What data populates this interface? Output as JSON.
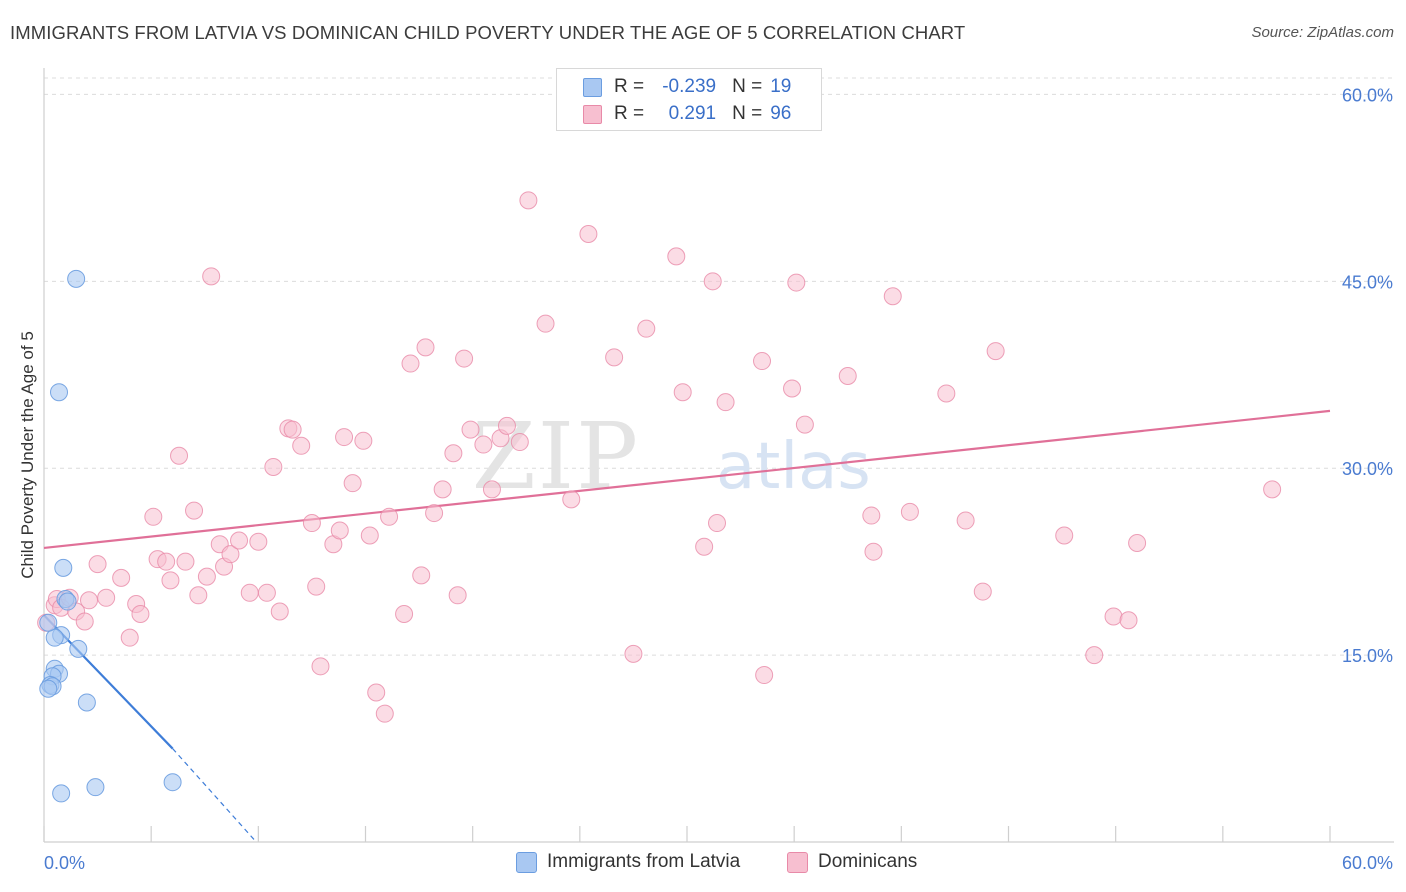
{
  "title": "IMMIGRANTS FROM LATVIA VS DOMINICAN CHILD POVERTY UNDER THE AGE OF 5 CORRELATION CHART",
  "source": "Source: ZipAtlas.com",
  "watermark": {
    "zip": "ZIP",
    "atlas": "atlas"
  },
  "legend": {
    "rows": [
      {
        "r_label": "R = ",
        "r_value": "-0.239",
        "n_label": "N = ",
        "n_value": "19"
      },
      {
        "r_label": "R = ",
        "r_value": "0.291",
        "n_label": "N = ",
        "n_value": "96"
      }
    ]
  },
  "bottom_legend": {
    "latvia": "Immigrants from Latvia",
    "dominicans": "Dominicans"
  },
  "colors": {
    "latvia_fill": "#a9c8f2",
    "latvia_stroke": "#6b9de0",
    "latvia_line": "#3e7dd8",
    "dominican_fill": "#f7bfd0",
    "dominican_stroke": "#e88aa8",
    "dominican_line": "#e07098",
    "tick_blue": "#4a7bd0"
  },
  "chart_data": {
    "type": "scatter",
    "title": "IMMIGRANTS FROM LATVIA VS DOMINICAN CHILD POVERTY UNDER THE AGE OF 5 CORRELATION CHART",
    "xlabel": "",
    "ylabel": "Child Poverty Under the Age of 5",
    "xlim": [
      0,
      60
    ],
    "ylim": [
      0,
      61.8
    ],
    "x_tick_labels": [
      "0.0%",
      "60.0%"
    ],
    "y_ticks": [
      15,
      30,
      45,
      60
    ],
    "y_tick_labels": [
      "15.0%",
      "30.0%",
      "45.0%",
      "60.0%"
    ],
    "grid": true,
    "legend_position": "top-center",
    "series": [
      {
        "name": "Immigrants from Latvia",
        "R": -0.239,
        "N": 19,
        "points": [
          [
            1.5,
            45.2
          ],
          [
            0.7,
            36.1
          ],
          [
            0.9,
            22.0
          ],
          [
            1.0,
            19.5
          ],
          [
            1.1,
            19.3
          ],
          [
            0.8,
            16.6
          ],
          [
            0.5,
            16.4
          ],
          [
            1.6,
            15.5
          ],
          [
            0.5,
            13.9
          ],
          [
            0.7,
            13.5
          ],
          [
            0.4,
            13.3
          ],
          [
            0.3,
            12.6
          ],
          [
            0.4,
            12.5
          ],
          [
            0.2,
            12.3
          ],
          [
            2.0,
            11.2
          ],
          [
            2.4,
            4.4
          ],
          [
            0.8,
            3.9
          ],
          [
            6.0,
            4.8
          ],
          [
            0.2,
            17.6
          ]
        ],
        "trend_line": {
          "x": [
            0,
            6.0
          ],
          "y": [
            18.2,
            7.5
          ]
        },
        "trend_extension": {
          "x": [
            6.0,
            9.8
          ],
          "y": [
            7.5,
            0.2
          ]
        }
      },
      {
        "name": "Dominicans",
        "R": 0.291,
        "N": 96,
        "points": [
          [
            0.5,
            19.0
          ],
          [
            0.6,
            19.5
          ],
          [
            0.8,
            18.8
          ],
          [
            1.2,
            19.6
          ],
          [
            1.5,
            18.5
          ],
          [
            1.9,
            17.7
          ],
          [
            2.1,
            19.4
          ],
          [
            2.5,
            22.3
          ],
          [
            2.9,
            19.6
          ],
          [
            3.6,
            21.2
          ],
          [
            4.0,
            16.4
          ],
          [
            4.3,
            19.1
          ],
          [
            4.5,
            18.3
          ],
          [
            5.1,
            26.1
          ],
          [
            5.3,
            22.7
          ],
          [
            5.7,
            22.5
          ],
          [
            5.9,
            21.0
          ],
          [
            6.3,
            31.0
          ],
          [
            6.6,
            22.5
          ],
          [
            7.0,
            26.6
          ],
          [
            7.2,
            19.8
          ],
          [
            7.6,
            21.3
          ],
          [
            7.8,
            45.4
          ],
          [
            8.2,
            23.9
          ],
          [
            8.4,
            22.1
          ],
          [
            8.7,
            23.1
          ],
          [
            9.1,
            24.2
          ],
          [
            9.6,
            20.0
          ],
          [
            10.0,
            24.1
          ],
          [
            10.4,
            20.0
          ],
          [
            10.7,
            30.1
          ],
          [
            11.0,
            18.5
          ],
          [
            11.4,
            33.2
          ],
          [
            11.6,
            33.1
          ],
          [
            12.0,
            31.8
          ],
          [
            12.5,
            25.6
          ],
          [
            12.7,
            20.5
          ],
          [
            12.9,
            14.1
          ],
          [
            13.5,
            23.9
          ],
          [
            13.8,
            25.0
          ],
          [
            14.0,
            32.5
          ],
          [
            14.4,
            28.8
          ],
          [
            14.9,
            32.2
          ],
          [
            15.2,
            24.6
          ],
          [
            15.5,
            12.0
          ],
          [
            15.9,
            10.3
          ],
          [
            16.1,
            26.1
          ],
          [
            16.8,
            18.3
          ],
          [
            17.1,
            38.4
          ],
          [
            17.6,
            21.4
          ],
          [
            17.8,
            39.7
          ],
          [
            18.2,
            26.4
          ],
          [
            18.6,
            28.3
          ],
          [
            19.1,
            31.2
          ],
          [
            19.3,
            19.8
          ],
          [
            19.6,
            38.8
          ],
          [
            19.9,
            33.1
          ],
          [
            20.5,
            31.9
          ],
          [
            20.9,
            28.3
          ],
          [
            21.3,
            32.4
          ],
          [
            21.6,
            33.4
          ],
          [
            22.2,
            32.1
          ],
          [
            22.6,
            51.5
          ],
          [
            23.4,
            41.6
          ],
          [
            24.6,
            27.5
          ],
          [
            25.4,
            48.8
          ],
          [
            26.6,
            38.9
          ],
          [
            27.5,
            15.1
          ],
          [
            28.1,
            41.2
          ],
          [
            29.5,
            47.0
          ],
          [
            29.8,
            36.1
          ],
          [
            30.8,
            23.7
          ],
          [
            31.2,
            45.0
          ],
          [
            31.4,
            25.6
          ],
          [
            31.8,
            35.3
          ],
          [
            33.5,
            38.6
          ],
          [
            33.6,
            13.4
          ],
          [
            34.9,
            36.4
          ],
          [
            35.1,
            44.9
          ],
          [
            35.5,
            33.5
          ],
          [
            37.5,
            37.4
          ],
          [
            38.6,
            26.2
          ],
          [
            38.7,
            23.3
          ],
          [
            39.6,
            43.8
          ],
          [
            40.4,
            26.5
          ],
          [
            42.1,
            36.0
          ],
          [
            43.0,
            25.8
          ],
          [
            43.8,
            20.1
          ],
          [
            44.4,
            39.4
          ],
          [
            47.6,
            24.6
          ],
          [
            49.0,
            15.0
          ],
          [
            49.9,
            18.1
          ],
          [
            50.6,
            17.8
          ],
          [
            51.0,
            24.0
          ],
          [
            57.3,
            28.3
          ],
          [
            0.1,
            17.6
          ]
        ],
        "trend_line": {
          "x": [
            0,
            60
          ],
          "y": [
            23.6,
            34.6
          ]
        }
      }
    ]
  }
}
